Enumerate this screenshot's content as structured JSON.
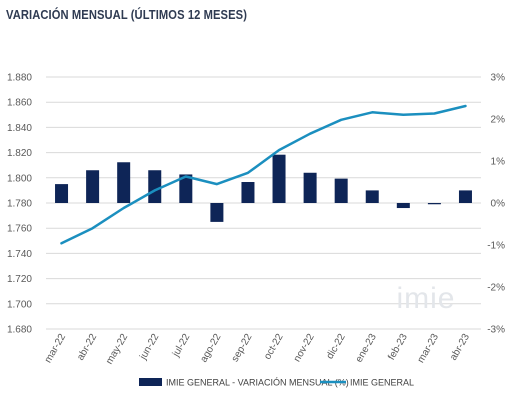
{
  "colors": {
    "bars": "#0e2557",
    "line": "#1b8fbf",
    "grid": "#d9d9d9",
    "text": "#595959",
    "watermark": "#e3e6ea"
  },
  "watermark": "imie",
  "chart_data": {
    "type": "bar",
    "title": "VARIACIÓN MENSUAL (ÚLTIMOS 12 MESES)",
    "categories": [
      "mar-22",
      "abr-22",
      "may-22",
      "jun-22",
      "jul-22",
      "ago-22",
      "sep-22",
      "oct-22",
      "nov-22",
      "dic-22",
      "ene-23",
      "feb-23",
      "mar-23",
      "abr-23"
    ],
    "left_axis": {
      "ticks": [
        "1.680",
        "1.700",
        "1.720",
        "1.740",
        "1.760",
        "1.780",
        "1.800",
        "1.820",
        "1.840",
        "1.860",
        "1.880"
      ],
      "ylim": [
        1680,
        1880
      ]
    },
    "right_axis": {
      "ticks": [
        "-3%",
        "-2%",
        "-1%",
        "0%",
        "1%",
        "2%",
        "3%"
      ],
      "ylim": [
        -3,
        3
      ]
    },
    "grid": true,
    "legend_position": "bottom",
    "series": [
      {
        "name": "IMIE GENERAL - VARIACIÓN MENSUAL (%)",
        "type": "bar",
        "axis": "right",
        "values": [
          0.45,
          0.78,
          0.97,
          0.78,
          0.68,
          -0.45,
          0.5,
          1.15,
          0.72,
          0.58,
          0.3,
          -0.12,
          -0.03,
          0.3
        ]
      },
      {
        "name": "IMIE GENERAL",
        "type": "line",
        "axis": "left",
        "values": [
          1748,
          1760,
          1776,
          1790,
          1801,
          1795,
          1804,
          1822,
          1835,
          1846,
          1852,
          1850,
          1851,
          1857
        ]
      }
    ]
  }
}
